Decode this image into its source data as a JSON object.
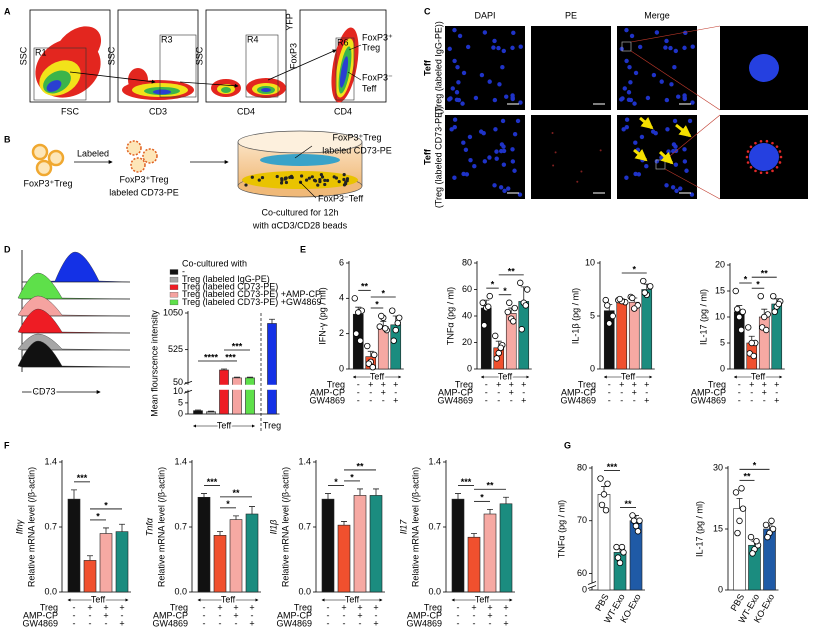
{
  "panel_labels": [
    "A",
    "B",
    "C",
    "D",
    "E",
    "F",
    "G"
  ],
  "flow": {
    "plots": [
      {
        "x": "FSC",
        "y": "SSC",
        "gate": "R1"
      },
      {
        "x": "CD3",
        "y": "SSC",
        "gate": "R3"
      },
      {
        "x": "CD4",
        "y": "SSC",
        "gate": "R4"
      },
      {
        "x": "CD4",
        "y": "FoxP3",
        "y_sup": "YFP",
        "gate": "R6"
      }
    ],
    "treg_label": [
      "FoxP3⁺",
      "Treg"
    ],
    "teff_label": [
      "FoxP3⁻",
      "Teff"
    ]
  },
  "coculture": {
    "cells": "FoxP3⁺Treg",
    "step": "Labeled",
    "labeled_cells": [
      "FoxP3⁺Treg",
      "labeled CD73-PE"
    ],
    "treg_tag": [
      "FoxP3⁺Treg",
      "labeled CD73-PE"
    ],
    "teff_tag": "FoxP3⁻Teff",
    "caption": [
      "Co-cultured for 12h",
      "with αCD3/CD28 beads"
    ]
  },
  "imaging": {
    "columns": [
      "DAPI",
      "PE",
      "Merge"
    ],
    "rows": [
      {
        "cell": "Teff",
        "label": "(Treg (labeled IgG-PE))"
      },
      {
        "cell": "Teff",
        "label": "(Treg (labeled CD73-PE))"
      }
    ]
  },
  "conditions": {
    "group": "Teff",
    "rows": [
      {
        "name": "Treg",
        "signs": [
          "-",
          "+",
          "+",
          "+"
        ]
      },
      {
        "name": "AMP-CP",
        "signs": [
          "-",
          "-",
          "+",
          "-"
        ]
      },
      {
        "name": "GW4869",
        "signs": [
          "-",
          "-",
          "-",
          "+"
        ]
      }
    ]
  },
  "chart_data": [
    {
      "type": "bar",
      "ylabel": "Mean flourscence intensity",
      "histogram_label": "CD73",
      "legend_title": "Co-cultured with",
      "legend": [
        "-",
        "Treg (labeled IgG-PE)",
        "Treg (labeled CD73-PE)",
        "Treg (labeled CD73-PE) +AMP-CP",
        "Treg (labeled CD73-PE) +GW4869"
      ],
      "categories": [
        null,
        null,
        null,
        null,
        null,
        null
      ],
      "groups": [
        [
          0,
          4
        ],
        [
          5,
          5
        ]
      ],
      "group_labels": [
        "Teff",
        "Treg"
      ],
      "colors": [
        "#111111",
        "#a6a6a6",
        "#ee1c24",
        "#f5a3a0",
        "#5ee04a",
        "#1431e6"
      ],
      "values": [
        1.5,
        1,
        233,
        120,
        120,
        900
      ],
      "errors": [
        0.3,
        0.3,
        15,
        10,
        10,
        60
      ],
      "ylim": [
        0,
        1050
      ],
      "axis_break": [
        10,
        50
      ],
      "yticks": [
        0,
        5,
        10,
        50,
        525,
        1050
      ],
      "significance": [
        {
          "pair": [
            0,
            2
          ],
          "label": "****"
        },
        {
          "pair": [
            2,
            3
          ],
          "label": "***"
        },
        {
          "pair": [
            2,
            4
          ],
          "label": "***"
        }
      ]
    },
    {
      "type": "bar",
      "ylabel": "IFN-γ (pg / ml)",
      "categories": [
        null,
        null,
        null,
        null
      ],
      "colors": [
        "#111111",
        "#f0502e",
        "#f6a9a3",
        "#1b8c7f"
      ],
      "values": [
        3.1,
        0.7,
        2.4,
        2.5
      ],
      "errors": [
        0.4,
        0.3,
        0.3,
        0.5
      ],
      "points": [
        [
          4.0,
          3.3,
          3.2,
          2.0,
          1.6
        ],
        [
          1.3,
          0.8,
          0.4,
          0.3,
          0.1
        ],
        [
          2.4,
          2.2,
          2.9,
          3.0,
          2.3
        ],
        [
          3.3,
          2.9,
          2.2,
          1.6,
          2.6
        ]
      ],
      "ylim": [
        0,
        6
      ],
      "yticks": [
        0,
        2,
        4,
        6
      ],
      "significance": [
        {
          "pair": [
            0,
            1
          ],
          "label": "**"
        },
        {
          "pair": [
            1,
            2
          ],
          "label": "*"
        },
        {
          "pair": [
            1,
            3
          ],
          "label": "*"
        }
      ]
    },
    {
      "type": "bar",
      "ylabel": "TNFα (pg / ml)",
      "categories": [
        null,
        null,
        null,
        null
      ],
      "colors": [
        "#111111",
        "#f0502e",
        "#f6a9a3",
        "#1b8c7f"
      ],
      "values": [
        46,
        16,
        42,
        51
      ],
      "errors": [
        6,
        5,
        4,
        11
      ],
      "points": [
        [
          50,
          55,
          46,
          33,
          47
        ],
        [
          25,
          18,
          12,
          8,
          16
        ],
        [
          43,
          46,
          38,
          50,
          36
        ],
        [
          65,
          60,
          50,
          30,
          48
        ]
      ],
      "ylim": [
        0,
        80
      ],
      "yticks": [
        0,
        20,
        40,
        60,
        80
      ],
      "significance": [
        {
          "pair": [
            0,
            1
          ],
          "label": "*"
        },
        {
          "pair": [
            1,
            2
          ],
          "label": "*"
        },
        {
          "pair": [
            1,
            3
          ],
          "label": "**"
        }
      ]
    },
    {
      "type": "bar",
      "ylabel": "IL-1β (pg / ml)",
      "categories": [
        null,
        null,
        null,
        null
      ],
      "colors": [
        "#111111",
        "#f0502e",
        "#f6a9a3",
        "#1b8c7f"
      ],
      "values": [
        5.5,
        6.4,
        6.3,
        7.5
      ],
      "errors": [
        0.6,
        0.2,
        0.4,
        0.5
      ],
      "points": [
        [
          6.5,
          5.0,
          4.3,
          6.0
        ],
        [
          6.5,
          6.3,
          6.4,
          6.6
        ],
        [
          6.8,
          6.0,
          5.7,
          6.7
        ],
        [
          8.3,
          7.8,
          7.0,
          7.2
        ]
      ],
      "ylim": [
        0,
        10
      ],
      "yticks": [
        0,
        5,
        10
      ],
      "significance": [
        {
          "pair": [
            1,
            3
          ],
          "label": "*"
        }
      ]
    },
    {
      "type": "bar",
      "ylabel": "IL-17 (pg / ml)",
      "categories": [
        null,
        null,
        null,
        null
      ],
      "colors": [
        "#111111",
        "#f0502e",
        "#f6a9a3",
        "#1b8c7f"
      ],
      "values": [
        11,
        5,
        10,
        12.5
      ],
      "errors": [
        1.2,
        1.3,
        1.5,
        1.0
      ],
      "points": [
        [
          15,
          11,
          10,
          11.5,
          7.5
        ],
        [
          8,
          5,
          5,
          3,
          2.5
        ],
        [
          14,
          10.5,
          10,
          8,
          7.5
        ],
        [
          14,
          13,
          12,
          11,
          12.5
        ]
      ],
      "ylim": [
        0,
        20
      ],
      "yticks": [
        0,
        5,
        10,
        15,
        20
      ],
      "significance": [
        {
          "pair": [
            0,
            1
          ],
          "label": "*"
        },
        {
          "pair": [
            1,
            2
          ],
          "label": "*"
        },
        {
          "pair": [
            1,
            3
          ],
          "label": "**"
        }
      ]
    },
    {
      "type": "bar",
      "gene": "Ifnγ",
      "ylabel": "Relative mRNA level (/β-actin)",
      "categories": [
        null,
        null,
        null,
        null
      ],
      "colors": [
        "#111111",
        "#f0502e",
        "#f6a9a3",
        "#1b8c7f"
      ],
      "values": [
        1.0,
        0.34,
        0.63,
        0.65
      ],
      "errors": [
        0.1,
        0.05,
        0.06,
        0.08
      ],
      "ylim": [
        0,
        1.4
      ],
      "yticks": [
        {
          "value": 0,
          "label": "0.0"
        },
        0.7,
        1.4
      ],
      "significance": [
        {
          "pair": [
            0,
            1
          ],
          "label": "***"
        },
        {
          "pair": [
            1,
            2
          ],
          "label": "*"
        },
        {
          "pair": [
            1,
            3
          ],
          "label": "*"
        }
      ]
    },
    {
      "type": "bar",
      "gene": "Tnfα",
      "ylabel": "Relative mRNA level (/β-actin)",
      "categories": [
        null,
        null,
        null,
        null
      ],
      "colors": [
        "#111111",
        "#f0502e",
        "#f6a9a3",
        "#1b8c7f"
      ],
      "values": [
        1.02,
        0.61,
        0.78,
        0.84
      ],
      "errors": [
        0.04,
        0.04,
        0.04,
        0.08
      ],
      "ylim": [
        0,
        1.4
      ],
      "yticks": [
        {
          "value": 0,
          "label": "0.0"
        },
        0.7,
        1.4
      ],
      "significance": [
        {
          "pair": [
            0,
            1
          ],
          "label": "***"
        },
        {
          "pair": [
            1,
            2
          ],
          "label": "*"
        },
        {
          "pair": [
            1,
            3
          ],
          "label": "**"
        }
      ]
    },
    {
      "type": "bar",
      "gene": "Il1β",
      "ylabel": "Relative mRNA level (/β-actin)",
      "categories": [
        null,
        null,
        null,
        null
      ],
      "colors": [
        "#111111",
        "#f0502e",
        "#f6a9a3",
        "#1b8c7f"
      ],
      "values": [
        1.0,
        0.72,
        1.04,
        1.04
      ],
      "errors": [
        0.06,
        0.04,
        0.07,
        0.07
      ],
      "ylim": [
        0,
        1.4
      ],
      "yticks": [
        {
          "value": 0,
          "label": "0.0"
        },
        0.7,
        1.4
      ],
      "significance": [
        {
          "pair": [
            0,
            1
          ],
          "label": "*"
        },
        {
          "pair": [
            1,
            2
          ],
          "label": "*"
        },
        {
          "pair": [
            1,
            3
          ],
          "label": "**"
        }
      ]
    },
    {
      "type": "bar",
      "gene": "Il17",
      "ylabel": "Relative mRNA level (/β-actin)",
      "categories": [
        null,
        null,
        null,
        null
      ],
      "colors": [
        "#111111",
        "#f0502e",
        "#f6a9a3",
        "#1b8c7f"
      ],
      "values": [
        1.0,
        0.59,
        0.84,
        0.95
      ],
      "errors": [
        0.06,
        0.04,
        0.05,
        0.07
      ],
      "ylim": [
        0,
        1.4
      ],
      "yticks": [
        {
          "value": 0,
          "label": "0.0"
        },
        0.7,
        1.4
      ],
      "significance": [
        {
          "pair": [
            0,
            1
          ],
          "label": "***"
        },
        {
          "pair": [
            1,
            2
          ],
          "label": "*"
        },
        {
          "pair": [
            1,
            3
          ],
          "label": "**"
        }
      ]
    },
    {
      "type": "bar",
      "ylabel": "TNFα (pg / ml)",
      "categories": [
        "PBS",
        "WT-Exo",
        "KO-Exo"
      ],
      "colors": [
        "#ffffff",
        "#1b8c7f",
        "#1f5aa6"
      ],
      "values": [
        75,
        64,
        70
      ],
      "errors": [
        1.5,
        1,
        1
      ],
      "points": [
        [
          78,
          77,
          75,
          73,
          72
        ],
        [
          65,
          64,
          62,
          63,
          65
        ],
        [
          71,
          70,
          69,
          70,
          68
        ]
      ],
      "ylim": [
        58,
        80
      ],
      "axis_break": true,
      "yticks": [
        0,
        60,
        70,
        80
      ],
      "significance": [
        {
          "pair": [
            0,
            1
          ],
          "label": "***"
        },
        {
          "pair": [
            1,
            2
          ],
          "label": "**"
        }
      ]
    },
    {
      "type": "bar",
      "ylabel": "IL-17 (pg / ml)",
      "categories": [
        "PBS",
        "WT-Exo",
        "KO-Exo"
      ],
      "colors": [
        "#ffffff",
        "#1b8c7f",
        "#1f5aa6"
      ],
      "values": [
        20,
        11,
        15
      ],
      "errors": [
        2.5,
        1,
        1
      ],
      "points": [
        [
          24,
          20,
          17,
          14,
          25
        ],
        [
          13,
          11,
          10,
          9,
          12
        ],
        [
          16,
          15,
          14,
          13,
          17
        ]
      ],
      "ylim": [
        0,
        30
      ],
      "yticks": [
        0,
        15,
        30
      ],
      "significance": [
        {
          "pair": [
            0,
            1
          ],
          "label": "**"
        },
        {
          "pair": [
            0,
            2
          ],
          "label": "*"
        }
      ]
    }
  ]
}
